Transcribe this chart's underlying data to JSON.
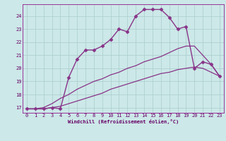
{
  "xlabel": "Windchill (Refroidissement éolien,°C)",
  "background_color": "#cce8e8",
  "grid_color": "#aacccc",
  "line_color": "#883388",
  "xlim": [
    -0.5,
    23.5
  ],
  "ylim": [
    16.6,
    24.9
  ],
  "xticks": [
    0,
    1,
    2,
    3,
    4,
    5,
    6,
    7,
    8,
    9,
    10,
    11,
    12,
    13,
    14,
    15,
    16,
    17,
    18,
    19,
    20,
    21,
    22,
    23
  ],
  "yticks": [
    17,
    18,
    19,
    20,
    21,
    22,
    23,
    24
  ],
  "series": [
    {
      "x": [
        0,
        1,
        2,
        3,
        4,
        5,
        6,
        7,
        8,
        9,
        10,
        11,
        12,
        13,
        14,
        15,
        16,
        17,
        18,
        19,
        20,
        21,
        22,
        23
      ],
      "y": [
        16.9,
        16.9,
        16.9,
        17.0,
        16.9,
        19.3,
        20.7,
        21.4,
        21.4,
        21.7,
        22.2,
        23.0,
        22.8,
        24.0,
        24.5,
        24.5,
        24.5,
        23.9,
        23.0,
        23.2,
        20.0,
        20.5,
        20.3,
        19.4
      ],
      "marker": "D",
      "markersize": 2.5,
      "linewidth": 1.0,
      "linestyle": "-"
    },
    {
      "x": [
        0,
        1,
        2,
        3,
        4,
        5,
        6,
        7,
        8,
        9,
        10,
        11,
        12,
        13,
        14,
        15,
        16,
        17,
        18,
        19,
        20,
        21,
        22,
        23
      ],
      "y": [
        16.9,
        16.9,
        17.0,
        17.3,
        17.7,
        18.0,
        18.4,
        18.7,
        19.0,
        19.2,
        19.5,
        19.7,
        20.0,
        20.2,
        20.5,
        20.7,
        20.9,
        21.2,
        21.5,
        21.7,
        21.7,
        21.0,
        20.3,
        19.4
      ],
      "marker": "None",
      "markersize": 0,
      "linewidth": 0.9,
      "linestyle": "-"
    },
    {
      "x": [
        0,
        1,
        2,
        3,
        4,
        5,
        6,
        7,
        8,
        9,
        10,
        11,
        12,
        13,
        14,
        15,
        16,
        17,
        18,
        19,
        20,
        21,
        22,
        23
      ],
      "y": [
        16.9,
        16.9,
        16.9,
        17.0,
        17.1,
        17.3,
        17.5,
        17.7,
        17.9,
        18.1,
        18.4,
        18.6,
        18.8,
        19.0,
        19.2,
        19.4,
        19.6,
        19.7,
        19.9,
        20.0,
        20.1,
        20.0,
        19.7,
        19.4
      ],
      "marker": "None",
      "markersize": 0,
      "linewidth": 0.9,
      "linestyle": "-"
    }
  ],
  "tick_fontsize": 5,
  "xlabel_fontsize": 5
}
